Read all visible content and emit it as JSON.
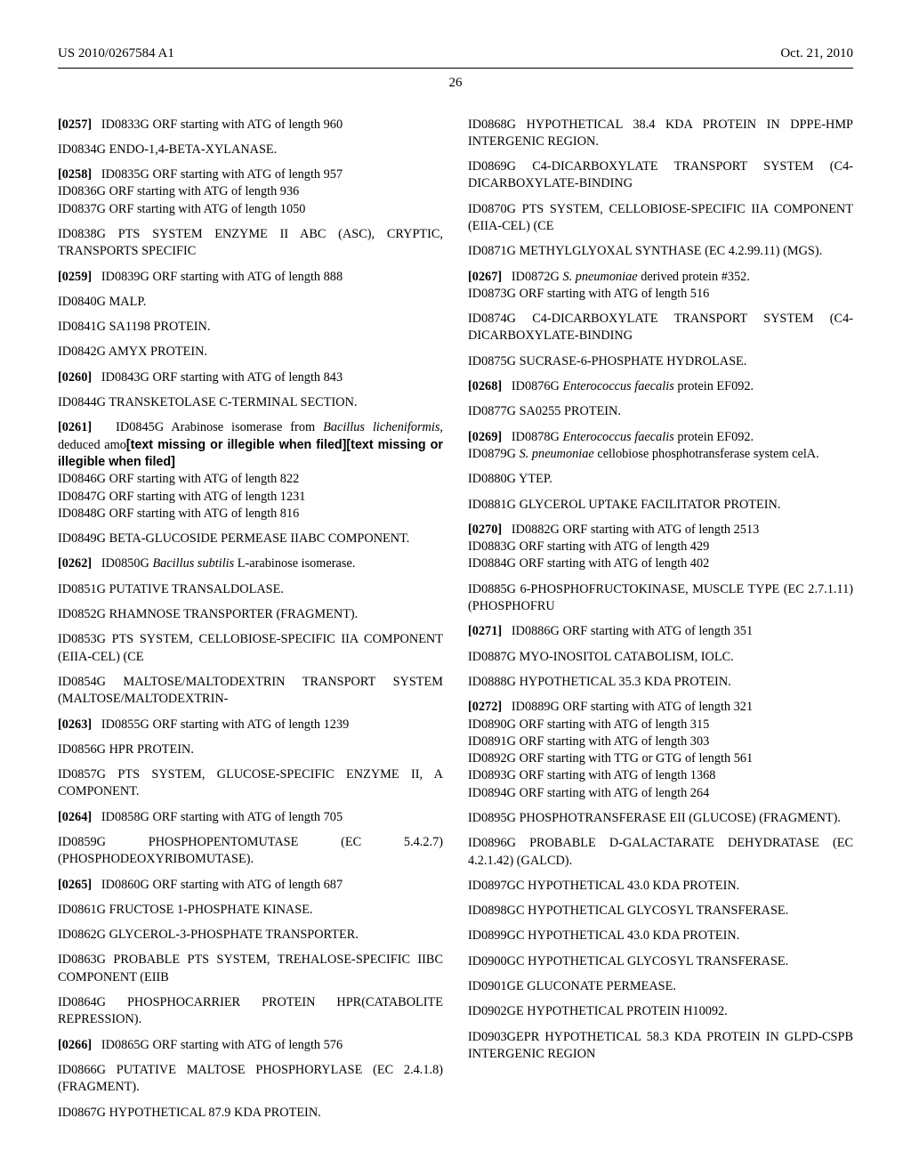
{
  "header": {
    "left": "US 2010/0267584 A1",
    "right": "Oct. 21, 2010"
  },
  "page_number": "26",
  "left_column": {
    "p0257": "ID0833G ORF starting with ATG of length 960",
    "p_id0834": "ID0834G ENDO-1,4-BETA-XYLANASE.",
    "p0258_a": "ID0835G ORF starting with ATG of length 957",
    "p0258_b": "ID0836G ORF starting with ATG of length 936",
    "p0258_c": "ID0837G ORF starting with ATG of length 1050",
    "p_id0838": "ID0838G PTS SYSTEM ENZYME II ABC (ASC), CRYPTIC, TRANSPORTS SPECIFIC",
    "p0259": "ID0839G ORF starting with ATG of length 888",
    "p_id0840": "ID0840G MALP.",
    "p_id0841": "ID0841G SA1198 PROTEIN.",
    "p_id0842": "ID0842G AMYX PROTEIN.",
    "p0260": "ID0843G ORF starting with ATG of length 843",
    "p_id0844": "ID0844G TRANSKETOLASE C-TERMINAL SECTION.",
    "p0261_pre": "ID0845G Arabinose isomerase from ",
    "p0261_it": "Bacillus licheniformis",
    "p0261_post": ", deduced amo",
    "p0261_sans": "[text missing or illegible when filed][text missing or illegible when filed]",
    "p0261_b": "ID0846G ORF starting with ATG of length 822",
    "p0261_c": "ID0847G ORF starting with ATG of length 1231",
    "p0261_d": "ID0848G ORF starting with ATG of length 816",
    "p_id0849": "ID0849G BETA-GLUCOSIDE PERMEASE IIABC COMPONENT.",
    "p0262_pre": "ID0850G ",
    "p0262_it": "Bacillus subtilis",
    "p0262_post": " L-arabinose isomerase.",
    "p_id0851": "ID0851G PUTATIVE TRANSALDOLASE.",
    "p_id0852": "ID0852G RHAMNOSE TRANSPORTER (FRAGMENT).",
    "p_id0853": "ID0853G PTS SYSTEM, CELLOBIOSE-SPECIFIC IIA COMPONENT (EIIA-CEL) (CE",
    "p_id0854": "ID0854G MALTOSE/MALTODEXTRIN TRANSPORT SYSTEM (MALTOSE/MALTODEXTRIN-",
    "p0263": "ID0855G ORF starting with ATG of length 1239",
    "p_id0856": "ID0856G HPR PROTEIN.",
    "p_id0857": "ID0857G PTS SYSTEM, GLUCOSE-SPECIFIC ENZYME II, A COMPONENT.",
    "p0264": "ID0858G ORF starting with ATG of length 705",
    "p_id0859": "ID0859G PHOSPHOPENTOMUTASE (EC 5.4.2.7) (PHOSPHODEOXYRIBOMUTASE).",
    "p0265": "ID0860G ORF starting with ATG of length 687",
    "p_id0861": "ID0861G FRUCTOSE 1-PHOSPHATE KINASE.",
    "p_id0862": "ID0862G GLYCEROL-3-PHOSPHATE TRANSPORTER.",
    "p_id0863": "ID0863G PROBABLE PTS SYSTEM, TREHALOSE-SPECIFIC IIBC COMPONENT (EIIB",
    "p_id0864": "ID0864G PHOSPHOCARRIER PROTEIN HPR(CATABOLITE REPRESSION).",
    "p0266": "ID0865G ORF starting with ATG of length 576",
    "p_id0866": "ID0866G PUTATIVE MALTOSE PHOSPHORYLASE (EC 2.4.1.8) (FRAGMENT).",
    "p_id0867": "ID0867G HYPOTHETICAL 87.9 KDA PROTEIN."
  },
  "right_column": {
    "p_id0868": "ID0868G HYPOTHETICAL 38.4 KDA PROTEIN IN DPPE-HMP INTERGENIC REGION.",
    "p_id0869": "ID0869G C4-DICARBOXYLATE TRANSPORT SYSTEM (C4-DICARBOXYLATE-BINDING",
    "p_id0870": "ID0870G PTS SYSTEM, CELLOBIOSE-SPECIFIC IIA COMPONENT (EIIA-CEL) (CE",
    "p_id0871": "ID0871G METHYLGLYOXAL SYNTHASE (EC 4.2.99.11) (MGS).",
    "p0267_pre": "ID0872G ",
    "p0267_it": "S. pneumoniae",
    "p0267_post": " derived protein #352.",
    "p0267_b": "ID0873G ORF starting with ATG of length 516",
    "p_id0874": "ID0874G C4-DICARBOXYLATE TRANSPORT SYSTEM (C4-DICARBOXYLATE-BINDING",
    "p_id0875": "ID0875G SUCRASE-6-PHOSPHATE HYDROLASE.",
    "p0268_pre": "ID0876G ",
    "p0268_it": "Enterococcus faecalis",
    "p0268_post": " protein EF092.",
    "p_id0877": "ID0877G SA0255 PROTEIN.",
    "p0269_pre": "ID0878G ",
    "p0269_it": "Enterococcus faecalis",
    "p0269_post": " protein EF092.",
    "p0269_b_pre": "ID0879G ",
    "p0269_b_it": "S. pneumoniae",
    "p0269_b_post": " cellobiose phosphotransferase system celA.",
    "p_id0880": "ID0880G YTEP.",
    "p_id0881": "ID0881G GLYCEROL UPTAKE FACILITATOR PROTEIN.",
    "p0270_a": "ID0882G ORF starting with ATG of length 2513",
    "p0270_b": "ID0883G ORF starting with ATG of length 429",
    "p0270_c": "ID0884G ORF starting with ATG of length 402",
    "p_id0885": "ID0885G 6-PHOSPHOFRUCTOKINASE, MUSCLE TYPE (EC 2.7.1.11) (PHOSPHOFRU",
    "p0271": "ID0886G ORF starting with ATG of length 351",
    "p_id0887": "ID0887G MYO-INOSITOL CATABOLISM, IOLC.",
    "p_id0888": "ID0888G HYPOTHETICAL 35.3 KDA PROTEIN.",
    "p0272_a": "ID0889G ORF starting with ATG of length 321",
    "p0272_b": "ID0890G ORF starting with ATG of length 315",
    "p0272_c": "ID0891G ORF starting with ATG of length 303",
    "p0272_d": "ID0892G ORF starting with TTG or GTG of length 561",
    "p0272_e": "ID0893G ORF starting with ATG of length 1368",
    "p0272_f": "ID0894G ORF starting with ATG of length 264",
    "p_id0895": "ID0895G PHOSPHOTRANSFERASE EII (GLUCOSE) (FRAGMENT).",
    "p_id0896": "ID0896G PROBABLE D-GALACTARATE DEHYDRATASE (EC 4.2.1.42) (GALCD).",
    "p_id0897": "ID0897GC HYPOTHETICAL 43.0 KDA PROTEIN.",
    "p_id0898": "ID0898GC HYPOTHETICAL GLYCOSYL TRANSFERASE.",
    "p_id0899": "ID0899GC HYPOTHETICAL 43.0 KDA PROTEIN.",
    "p_id0900": "ID0900GC HYPOTHETICAL GLYCOSYL TRANSFERASE.",
    "p_id0901": "ID0901GE GLUCONATE PERMEASE.",
    "p_id0902": "ID0902GE HYPOTHETICAL PROTEIN H10092.",
    "p_id0903": "ID0903GEPR HYPOTHETICAL 58.3 KDA PROTEIN IN GLPD-CSPB INTERGENIC REGION"
  },
  "nums": {
    "n0257": "[0257]",
    "n0258": "[0258]",
    "n0259": "[0259]",
    "n0260": "[0260]",
    "n0261": "[0261]",
    "n0262": "[0262]",
    "n0263": "[0263]",
    "n0264": "[0264]",
    "n0265": "[0265]",
    "n0266": "[0266]",
    "n0267": "[0267]",
    "n0268": "[0268]",
    "n0269": "[0269]",
    "n0270": "[0270]",
    "n0271": "[0271]",
    "n0272": "[0272]"
  }
}
